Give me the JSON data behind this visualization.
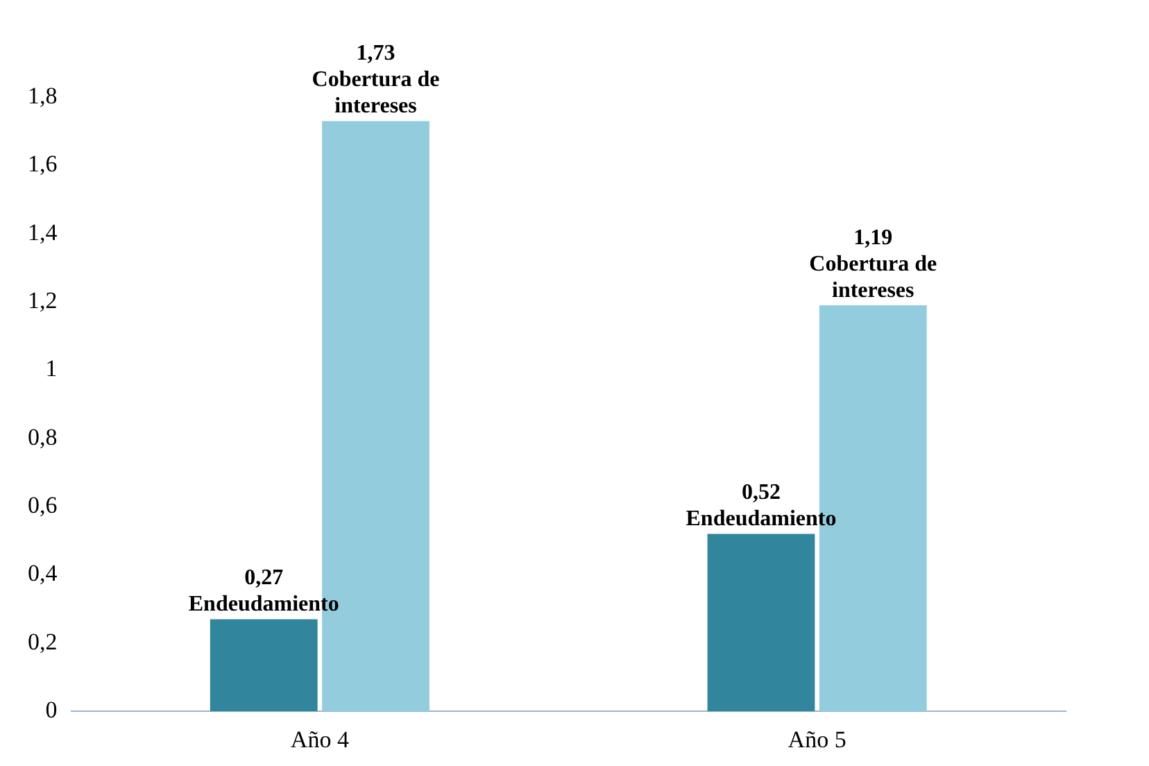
{
  "chart_data": {
    "type": "bar",
    "categories": [
      "Año 4",
      "Año 5"
    ],
    "series": [
      {
        "name": "Endeudamiento",
        "color": "#31859c",
        "values": [
          0.27,
          0.52
        ],
        "value_labels": [
          "0,27",
          "0,52"
        ]
      },
      {
        "name": "Cobertura de intereses",
        "color": "#93cddd",
        "values": [
          1.73,
          1.19
        ],
        "value_labels": [
          "1,73",
          "1,19"
        ]
      }
    ],
    "ylim": [
      0,
      1.8
    ],
    "yticks": [
      0,
      {
        "value": 0.2,
        "label": "0,2"
      },
      {
        "value": 0.4,
        "label": "0,4"
      },
      {
        "value": 0.6,
        "label": "0,6"
      },
      {
        "value": 0.8,
        "label": "0,8"
      },
      1,
      {
        "value": 1.2,
        "label": "1,2"
      },
      {
        "value": 1.4,
        "label": "1,4"
      },
      {
        "value": 1.6,
        "label": "1,6"
      },
      {
        "value": 1.8,
        "label": "1,8"
      }
    ],
    "grid": false,
    "legend": false
  }
}
